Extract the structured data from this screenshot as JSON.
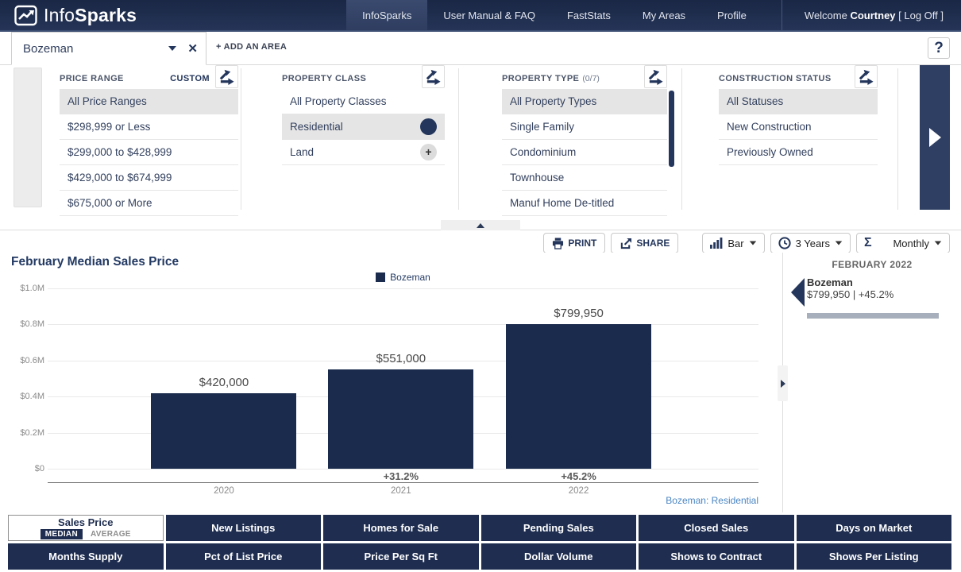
{
  "colors": {
    "navy": "#1e2d50",
    "bar": "#1b2b4d",
    "link_blue": "#4b86c4",
    "selected_gray": "#e5e5e5"
  },
  "nav": {
    "brand_info": "Info",
    "brand_sparks": "Sparks",
    "items": [
      {
        "label": "InfoSparks",
        "active": true
      },
      {
        "label": "User Manual & FAQ",
        "active": false
      },
      {
        "label": "FastStats",
        "active": false
      },
      {
        "label": "My Areas",
        "active": false
      },
      {
        "label": "Profile",
        "active": false
      }
    ],
    "welcome_prefix": "Welcome ",
    "username": "Courtney",
    "logoff": " [ Log Off ]"
  },
  "area_bar": {
    "area_name": "Bozeman",
    "add_area_label": "+ ADD AN AREA",
    "help_label": "?"
  },
  "filters": [
    {
      "title": "PRICE RANGE",
      "link": "CUSTOM",
      "items": [
        {
          "label": "All Price Ranges",
          "selected": true
        },
        {
          "label": "$298,999 or Less"
        },
        {
          "label": "$299,000 to $428,999"
        },
        {
          "label": "$429,000 to $674,999"
        },
        {
          "label": "$675,000 or More"
        }
      ]
    },
    {
      "title": "PROPERTY CLASS",
      "items": [
        {
          "label": "All Property Classes"
        },
        {
          "label": "Residential",
          "selected": true,
          "marker": "filled"
        },
        {
          "label": "Land",
          "marker": "plus"
        }
      ]
    },
    {
      "title": "PROPERTY TYPE",
      "count": "(0/7)",
      "scrollbar": true,
      "items": [
        {
          "label": "All Property Types",
          "selected": true
        },
        {
          "label": "Single Family"
        },
        {
          "label": "Condominium"
        },
        {
          "label": "Townhouse"
        },
        {
          "label": "Manuf Home De-titled"
        }
      ]
    },
    {
      "title": "CONSTRUCTION STATUS",
      "items": [
        {
          "label": "All Statuses",
          "selected": true
        },
        {
          "label": "New Construction"
        },
        {
          "label": "Previously Owned"
        }
      ]
    }
  ],
  "toolbar": {
    "print_label": "PRINT",
    "share_label": "SHARE",
    "chart_type_label": "Bar",
    "time_range_label": "3 Years",
    "aggregation_label": "Monthly"
  },
  "chart_data": {
    "type": "bar",
    "title": "February Median Sales Price",
    "legend": [
      "Bozeman"
    ],
    "categories": [
      "2020",
      "2021",
      "2022"
    ],
    "values": [
      420000,
      551000,
      799950
    ],
    "value_labels": [
      "$420,000",
      "$551,000",
      "$799,950"
    ],
    "pct_change_labels": [
      "",
      "+31.2%",
      "+45.2%"
    ],
    "y_ticks": [
      "$1.0M",
      "$0.8M",
      "$0.6M",
      "$0.4M",
      "$0.2M",
      "$0"
    ],
    "ylim": [
      0,
      1000000
    ],
    "grid": true,
    "legend_position": "top-center",
    "bar_color": "#1b2b4d"
  },
  "summary": {
    "header": "FEBRUARY 2022",
    "entries": [
      {
        "name": "Bozeman",
        "value": "$799,950 | +45.2%"
      }
    ]
  },
  "chart_footnote": "Bozeman: Residential",
  "metrics": [
    {
      "label": "Sales Price",
      "active": true,
      "sub": [
        {
          "label": "MEDIAN",
          "selected": true
        },
        {
          "label": "AVERAGE",
          "selected": false
        }
      ]
    },
    {
      "label": "New Listings"
    },
    {
      "label": "Homes for Sale"
    },
    {
      "label": "Pending Sales"
    },
    {
      "label": "Closed Sales"
    },
    {
      "label": "Days on Market"
    },
    {
      "label": "Months Supply"
    },
    {
      "label": "Pct of List Price"
    },
    {
      "label": "Price Per Sq Ft"
    },
    {
      "label": "Dollar Volume"
    },
    {
      "label": "Shows to Contract"
    },
    {
      "label": "Shows Per Listing"
    }
  ]
}
